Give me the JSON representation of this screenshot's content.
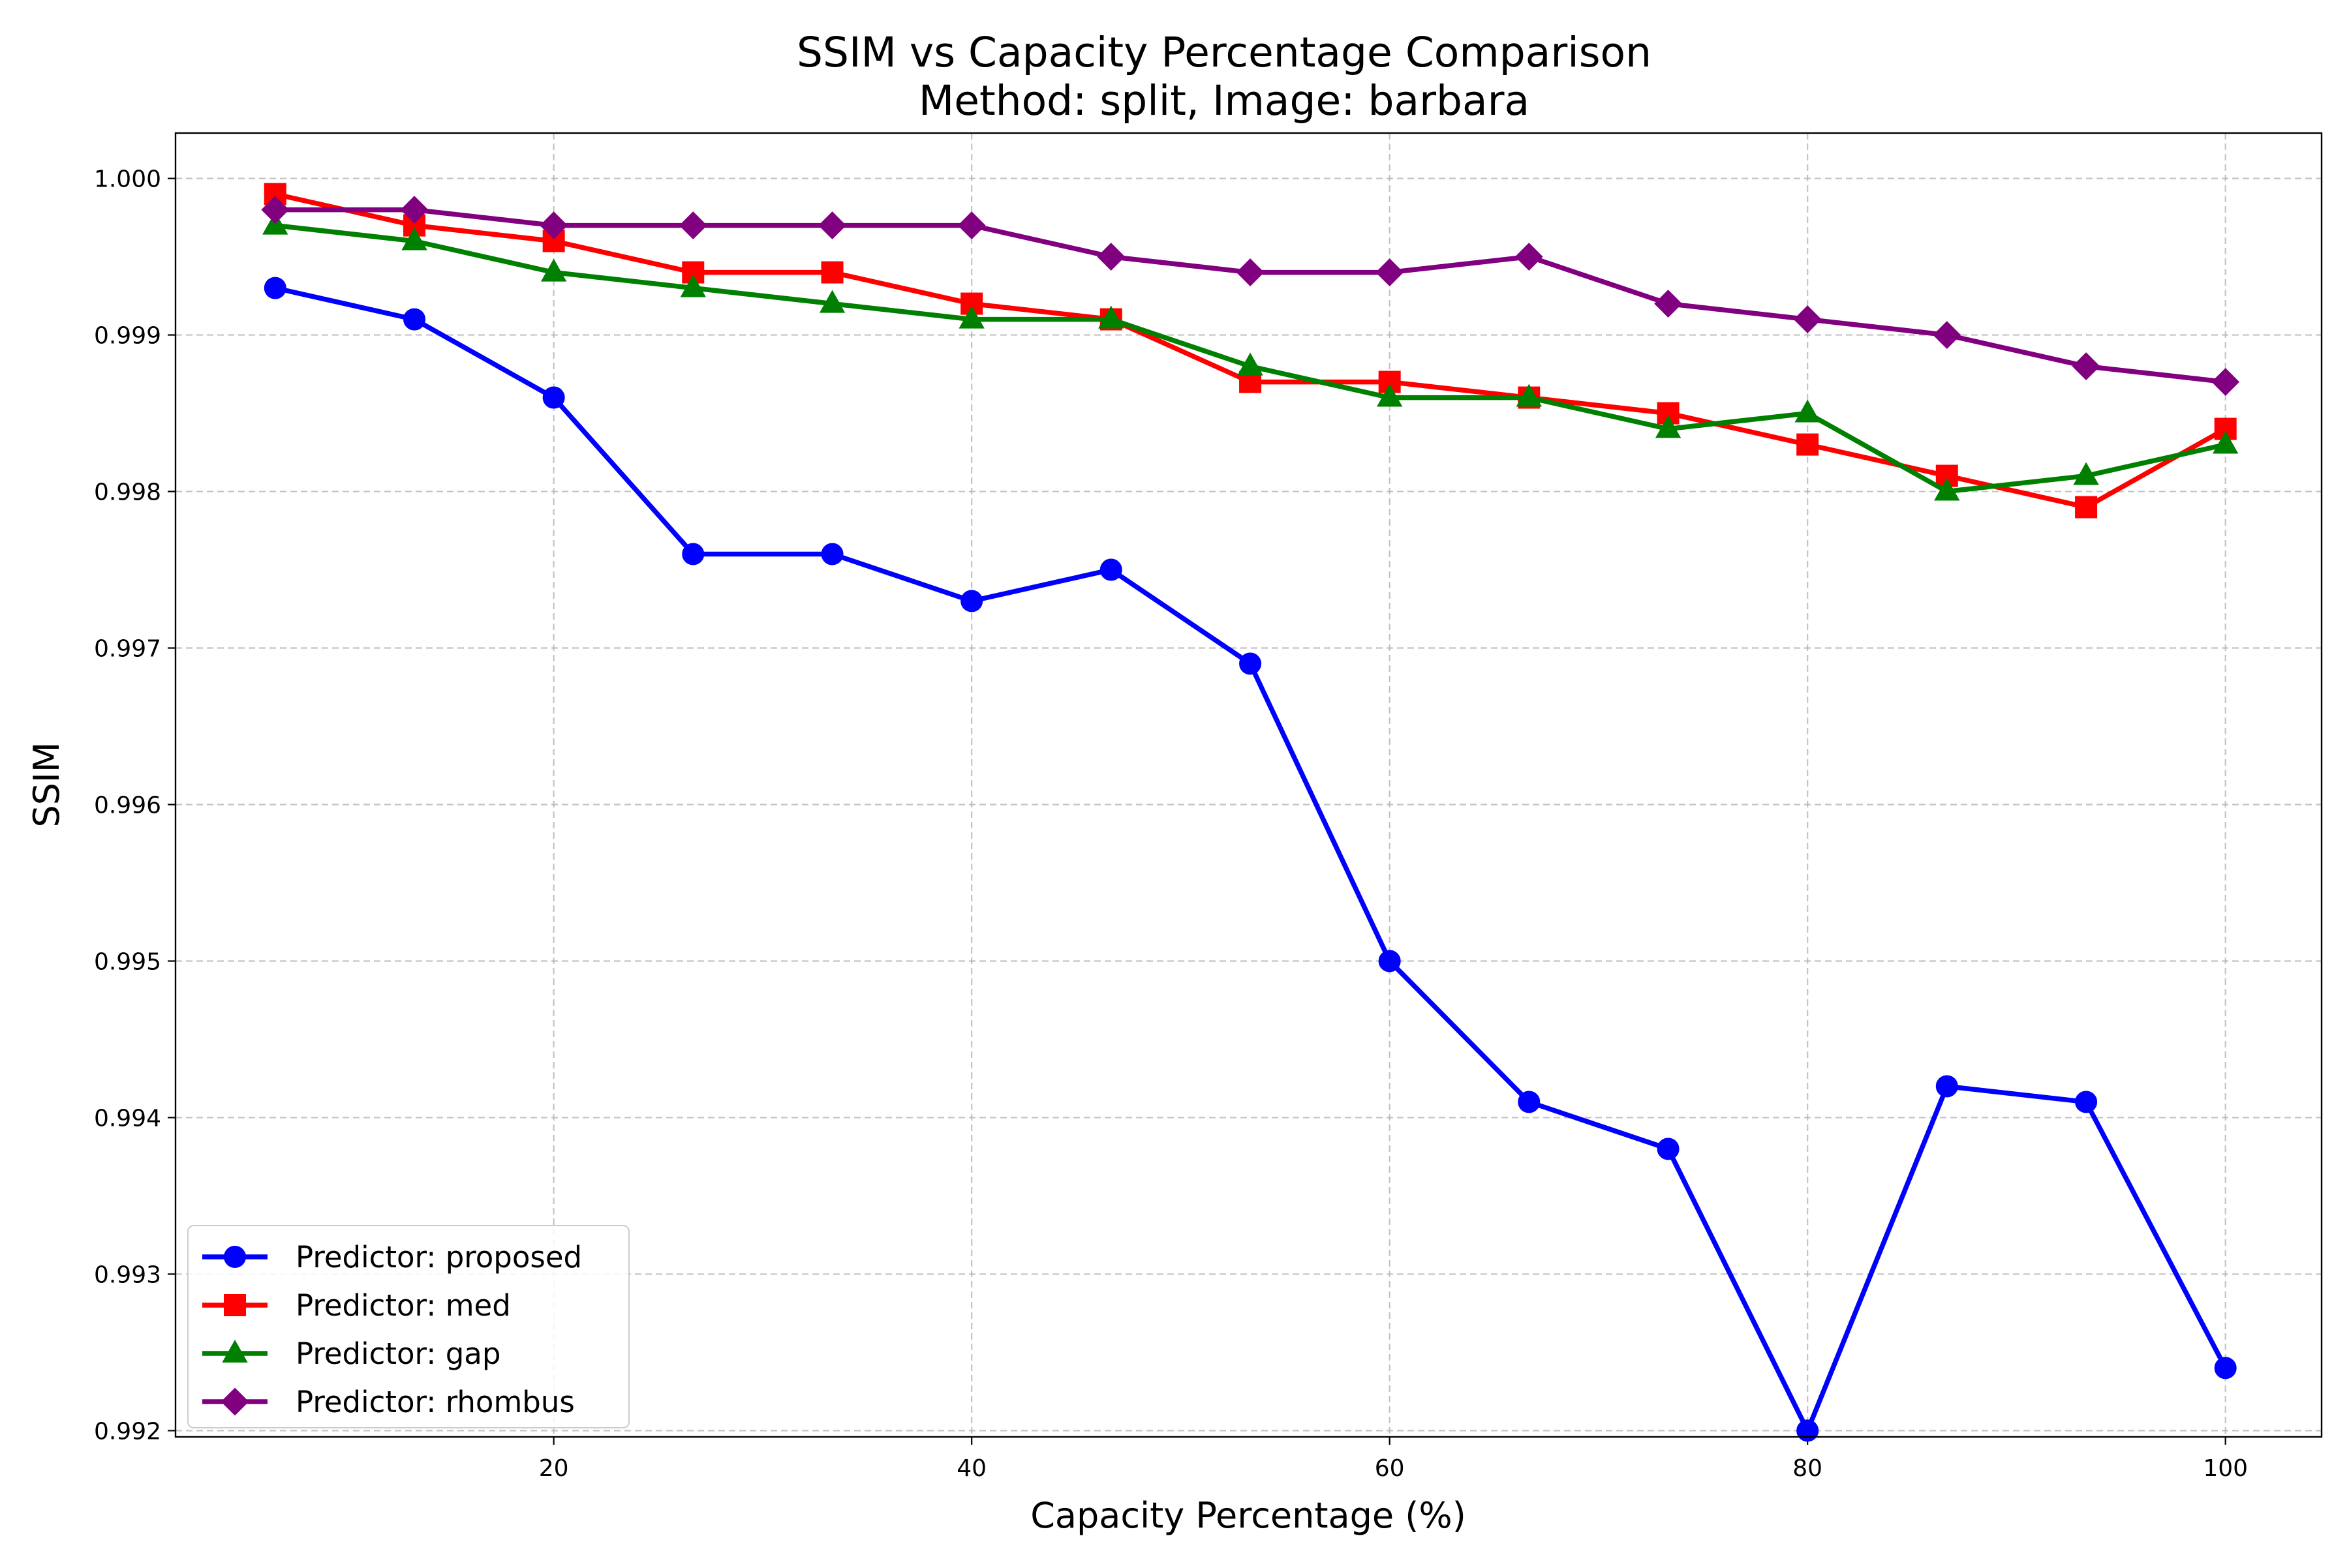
{
  "chart_data": {
    "type": "line",
    "title": "SSIM vs Capacity Percentage Comparison",
    "subtitle": "Method: split, Image: barbara",
    "xlabel": "Capacity Percentage (%)",
    "ylabel": "SSIM",
    "xlim": [
      1.9,
      104.6
    ],
    "ylim": [
      0.99196,
      1.00029
    ],
    "x_ticks": [
      20,
      40,
      60,
      80,
      100
    ],
    "y_ticks": [
      0.992,
      0.993,
      0.994,
      0.995,
      0.996,
      0.997,
      0.998,
      0.999,
      1.0
    ],
    "x_tick_labels": [
      "20",
      "40",
      "60",
      "80",
      "100"
    ],
    "y_tick_labels": [
      "0.992",
      "0.993",
      "0.994",
      "0.995",
      "0.996",
      "0.997",
      "0.998",
      "0.999",
      "1.000"
    ],
    "grid": true,
    "legend_position": "bottom-left",
    "x": [
      6.67,
      13.33,
      20.0,
      26.67,
      33.33,
      40.0,
      46.67,
      53.33,
      60.0,
      66.67,
      73.33,
      80.0,
      86.67,
      93.33,
      100.0
    ],
    "series": [
      {
        "name": "Predictor: proposed",
        "color": "#0000ff",
        "marker": "circle",
        "values": [
          0.9993,
          0.9991,
          0.9986,
          0.9976,
          0.9976,
          0.9973,
          0.9975,
          0.9969,
          0.995,
          0.9941,
          0.9938,
          0.992,
          0.9942,
          0.9941,
          0.9924
        ]
      },
      {
        "name": "Predictor: med",
        "color": "#ff0000",
        "marker": "square",
        "values": [
          0.9999,
          0.9997,
          0.9996,
          0.9994,
          0.9994,
          0.9992,
          0.9991,
          0.9987,
          0.9987,
          0.9986,
          0.9985,
          0.9983,
          0.9981,
          0.9979,
          0.9984
        ]
      },
      {
        "name": "Predictor: gap",
        "color": "#008000",
        "marker": "triangle",
        "values": [
          0.9997,
          0.9996,
          0.9994,
          0.9993,
          0.9992,
          0.9991,
          0.9991,
          0.9988,
          0.9986,
          0.9986,
          0.9984,
          0.9985,
          0.998,
          0.9981,
          0.9983
        ]
      },
      {
        "name": "Predictor: rhombus",
        "color": "#800080",
        "marker": "diamond",
        "values": [
          0.9998,
          0.9998,
          0.9997,
          0.9997,
          0.9997,
          0.9997,
          0.9995,
          0.9994,
          0.9994,
          0.9995,
          0.9992,
          0.9991,
          0.999,
          0.9988,
          0.9987
        ]
      }
    ]
  }
}
